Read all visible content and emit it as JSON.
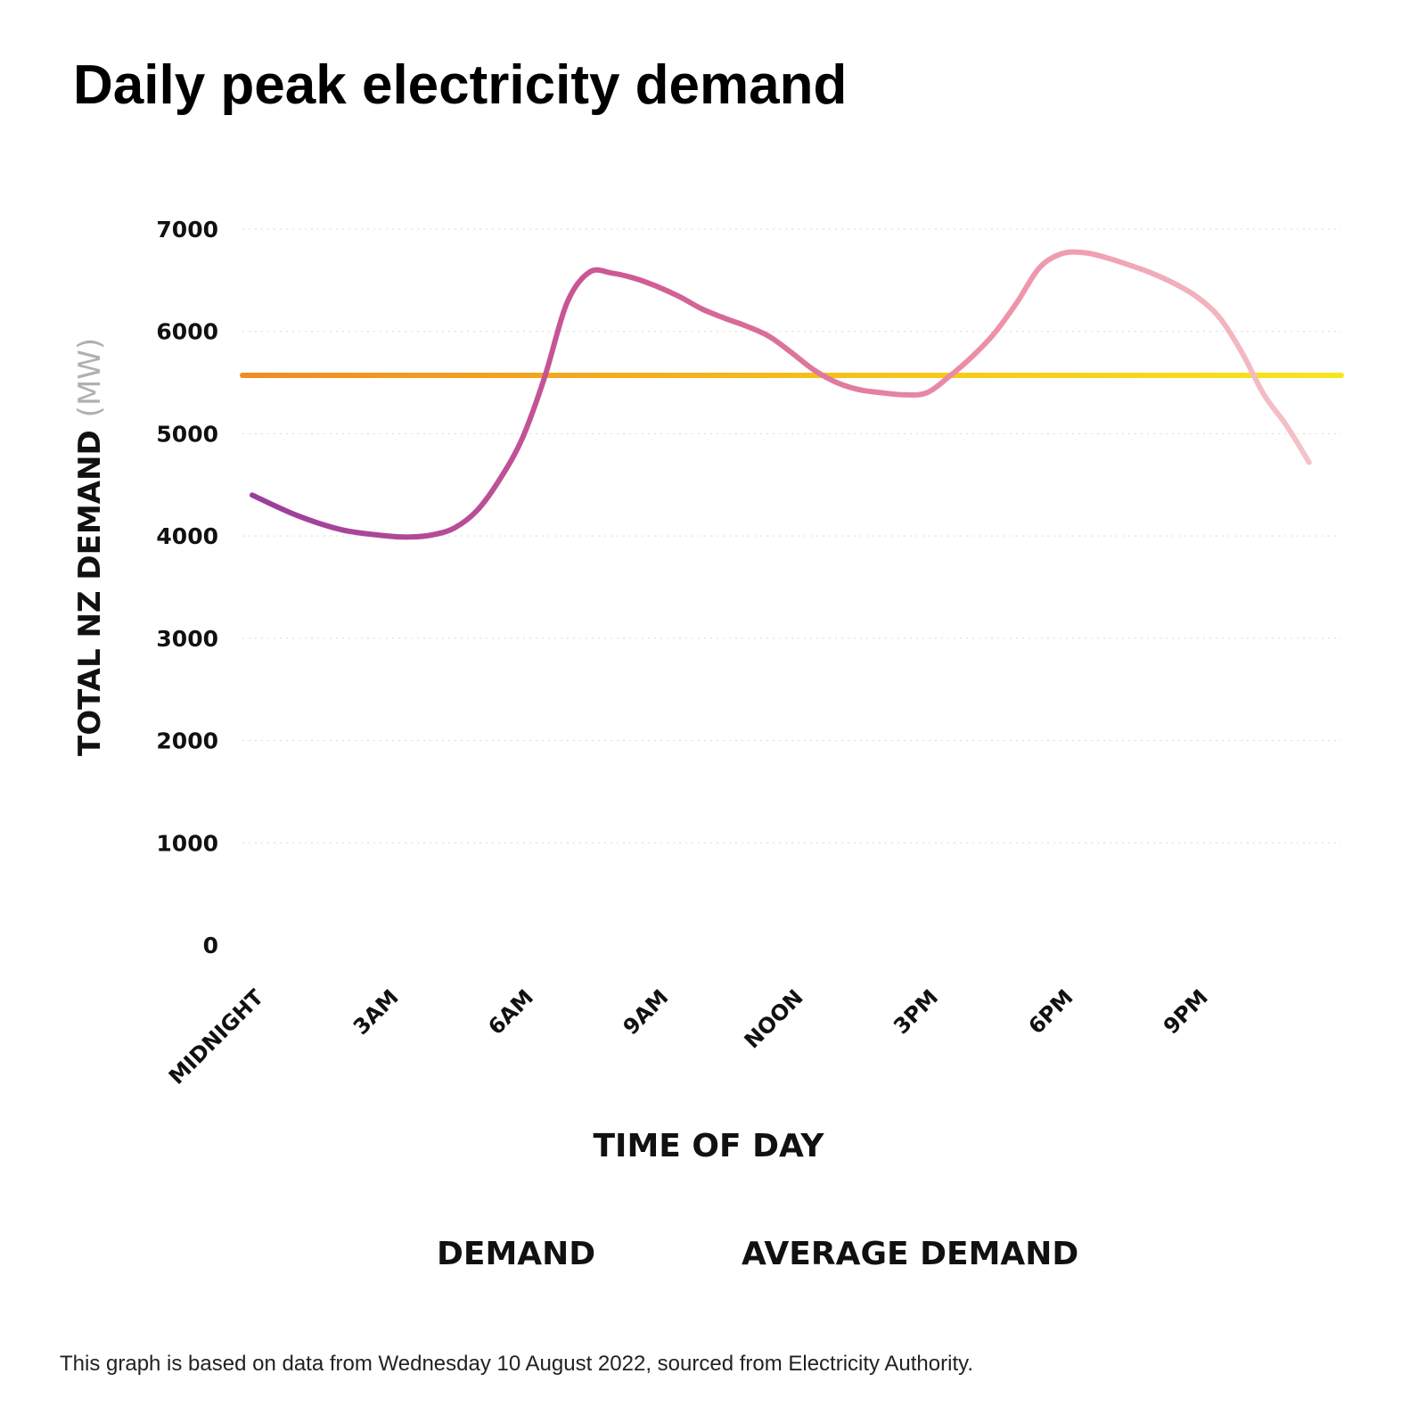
{
  "chart_data": {
    "type": "line",
    "title": "Daily peak electricity demand",
    "xlabel": "TIME OF DAY",
    "ylabel": "TOTAL NZ DEMAND",
    "ylabel_unit": "(MW)",
    "ylim": [
      0,
      7000
    ],
    "yticks": [
      0,
      1000,
      2000,
      3000,
      4000,
      5000,
      6000,
      7000
    ],
    "xlim": [
      0,
      24
    ],
    "x_ticks": [
      {
        "hour": 0,
        "label": "MIDNIGHT"
      },
      {
        "hour": 3,
        "label": "3AM"
      },
      {
        "hour": 6,
        "label": "6AM"
      },
      {
        "hour": 9,
        "label": "9AM"
      },
      {
        "hour": 12,
        "label": "NOON"
      },
      {
        "hour": 15,
        "label": "3PM"
      },
      {
        "hour": 18,
        "label": "6PM"
      },
      {
        "hour": 21,
        "label": "9PM"
      }
    ],
    "grid": true,
    "series": [
      {
        "name": "DEMAND",
        "gradient": [
          "#9a3d9b",
          "#cf5a93",
          "#ee93a8",
          "#f4c6cc"
        ],
        "x": [
          0,
          1,
          2,
          3,
          3.5,
          4,
          4.5,
          5,
          5.5,
          6,
          6.5,
          7,
          7.5,
          8,
          8.5,
          9,
          9.5,
          10,
          10.5,
          11,
          11.5,
          12,
          12.5,
          13,
          13.5,
          14,
          14.5,
          15,
          15.5,
          16,
          16.5,
          17,
          17.5,
          18,
          18.5,
          19,
          19.5,
          20,
          20.5,
          21,
          21.5,
          22,
          22.5,
          23,
          23.5
        ],
        "values": [
          4400,
          4200,
          4060,
          4000,
          3990,
          4010,
          4080,
          4250,
          4550,
          4950,
          5550,
          6280,
          6580,
          6570,
          6520,
          6440,
          6340,
          6220,
          6130,
          6050,
          5950,
          5790,
          5620,
          5500,
          5430,
          5400,
          5380,
          5400,
          5560,
          5750,
          5980,
          6280,
          6620,
          6760,
          6770,
          6720,
          6650,
          6570,
          6470,
          6340,
          6140,
          5800,
          5380,
          5080,
          4720
        ]
      },
      {
        "name": "AVERAGE DEMAND",
        "gradient": [
          "#f28b22",
          "#f7c51a",
          "#f7e61a"
        ],
        "value": 5570
      }
    ],
    "legend": {
      "position": "bottom"
    },
    "footnote": "This graph is based on data from Wednesday 10 August 2022, sourced from Electricity Authority."
  }
}
